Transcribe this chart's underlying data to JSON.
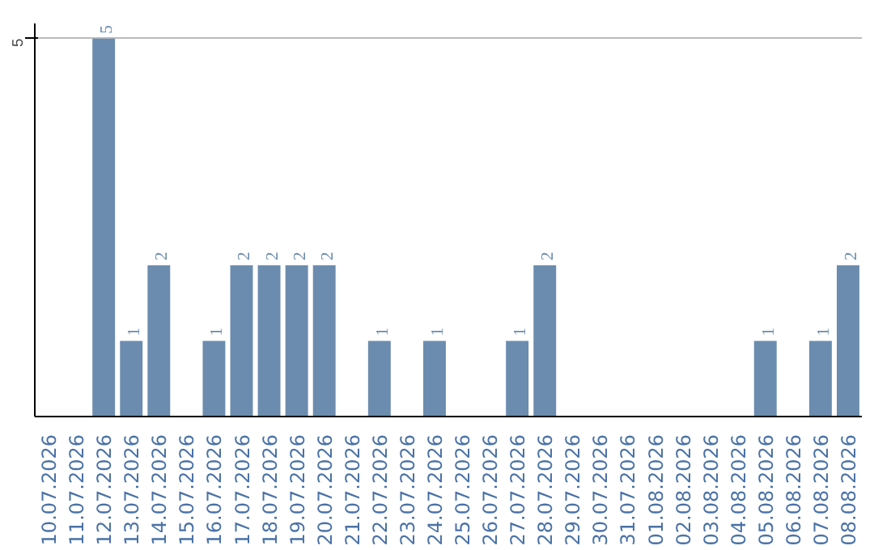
{
  "chart_data": {
    "type": "bar",
    "categories": [
      "10.07.2026",
      "11.07.2026",
      "12.07.2026",
      "13.07.2026",
      "14.07.2026",
      "15.07.2026",
      "16.07.2026",
      "17.07.2026",
      "18.07.2026",
      "19.07.2026",
      "20.07.2026",
      "21.07.2026",
      "22.07.2026",
      "23.07.2026",
      "24.07.2026",
      "25.07.2026",
      "26.07.2026",
      "27.07.2026",
      "28.07.2026",
      "29.07.2026",
      "30.07.2026",
      "31.07.2026",
      "01.08.2026",
      "02.08.2026",
      "03.08.2026",
      "04.08.2026",
      "05.08.2026",
      "06.08.2026",
      "07.08.2026",
      "08.08.2026"
    ],
    "values": [
      0,
      0,
      5,
      1,
      2,
      0,
      1,
      2,
      2,
      2,
      2,
      0,
      1,
      0,
      1,
      0,
      0,
      1,
      2,
      0,
      0,
      0,
      0,
      0,
      0,
      0,
      1,
      0,
      1,
      2
    ],
    "value_labels": [
      null,
      null,
      "5",
      "1",
      "2",
      null,
      "1",
      "2",
      "2",
      "2",
      "2",
      null,
      "1",
      null,
      "1",
      null,
      null,
      "1",
      "2",
      null,
      null,
      null,
      null,
      null,
      null,
      null,
      "1",
      null,
      "1",
      "2"
    ],
    "color": "#6b8cae",
    "ylim": [
      0,
      5.2
    ],
    "yticks": [
      5
    ],
    "grid": "y"
  }
}
